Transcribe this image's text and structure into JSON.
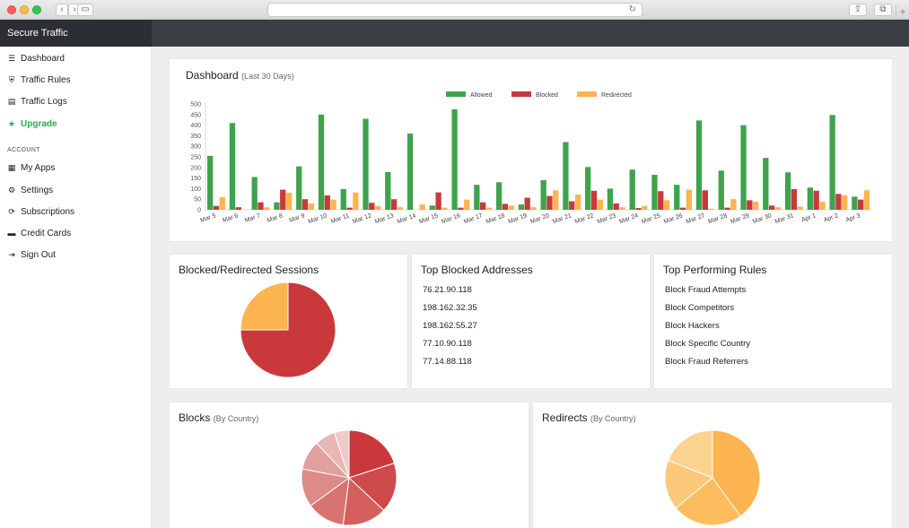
{
  "app": {
    "brand": "Secure Traffic"
  },
  "sidebar": {
    "items": [
      {
        "label": "Dashboard",
        "icon": "menu-icon"
      },
      {
        "label": "Traffic Rules",
        "icon": "shield-icon"
      },
      {
        "label": "Traffic Logs",
        "icon": "logs-icon"
      },
      {
        "label": "Upgrade",
        "icon": "star-icon"
      }
    ],
    "account_heading": "ACCOUNT",
    "account_items": [
      {
        "label": "My Apps",
        "icon": "grid-icon"
      },
      {
        "label": "Settings",
        "icon": "gear-icon"
      },
      {
        "label": "Subscriptions",
        "icon": "refresh-icon"
      },
      {
        "label": "Credit Cards",
        "icon": "credit-card-icon"
      },
      {
        "label": "Sign Out",
        "icon": "sign-out-icon"
      }
    ]
  },
  "dashboard": {
    "title": "Dashboard",
    "subtitle": "(Last 30 Days)",
    "chart_data": {
      "type": "bar",
      "categories": [
        "Mar 5",
        "Mar 6",
        "Mar 7",
        "Mar 8",
        "Mar 9",
        "Mar 10",
        "Mar 11",
        "Mar 12",
        "Mar 13",
        "Mar 14",
        "Mar 15",
        "Mar 16",
        "Mar 17",
        "Mar 18",
        "Mar 19",
        "Mar 20",
        "Mar 21",
        "Mar 22",
        "Mar 23",
        "Mar 24",
        "Mar 25",
        "Mar 26",
        "Mar 27",
        "Mar 28",
        "Mar 29",
        "Mar 30",
        "Mar 31",
        "Apr 1",
        "Apr 2",
        "Apr 3"
      ],
      "series": [
        {
          "name": "Allowed",
          "color": "#3fa34d",
          "values": [
            255,
            410,
            155,
            35,
            205,
            450,
            98,
            430,
            178,
            360,
            20,
            475,
            118,
            130,
            25,
            140,
            320,
            202,
            100,
            190,
            165,
            118,
            422,
            185,
            400,
            245,
            177,
            105,
            448,
            62
          ]
        },
        {
          "name": "Blocked",
          "color": "#c9393b",
          "values": [
            18,
            12,
            35,
            95,
            50,
            68,
            10,
            33,
            50,
            0,
            82,
            10,
            35,
            28,
            57,
            65,
            40,
            90,
            30,
            8,
            88,
            10,
            92,
            10,
            45,
            20,
            98,
            90,
            75,
            48
          ]
        },
        {
          "name": "Redirected",
          "color": "#fbb450",
          "values": [
            60,
            0,
            12,
            80,
            30,
            48,
            82,
            18,
            12,
            25,
            10,
            48,
            10,
            20,
            12,
            92,
            72,
            48,
            12,
            18,
            45,
            95,
            5,
            50,
            38,
            12,
            15,
            38,
            68,
            92
          ]
        }
      ],
      "ylim": [
        0,
        500
      ],
      "yticks": [
        0,
        50,
        100,
        150,
        200,
        250,
        300,
        350,
        400,
        450,
        500
      ],
      "legend": "top"
    }
  },
  "sessions": {
    "title": "Blocked/Redirected Sessions",
    "chart_data": {
      "type": "pie",
      "labels": [
        "Blocked",
        "Redirected"
      ],
      "values": [
        75,
        25
      ],
      "colors": [
        "#c9393b",
        "#fbb450"
      ]
    }
  },
  "blocked_addresses": {
    "title": "Top Blocked Addresses",
    "items": [
      "76.21.90.118",
      "198.162.32.35",
      "198.162.55.27",
      "77.10.90.118",
      "77.14.88.118"
    ]
  },
  "top_rules": {
    "title": "Top Performing Rules",
    "items": [
      "Block Fraud Attempts",
      "Block Competitors",
      "Block Hackers",
      "Block Specific Country",
      "Block Fraud Referrers"
    ]
  },
  "blocks_country": {
    "title": "Blocks",
    "subtitle": "(By Country)",
    "chart_data": {
      "type": "pie",
      "values": [
        20,
        17,
        15,
        13,
        13,
        10,
        7,
        5
      ],
      "colors": [
        "#c9393b",
        "#cf4a4b",
        "#d45f5d",
        "#d77370",
        "#dc8b88",
        "#e0a09d",
        "#e8b7b4",
        "#eecbc8"
      ]
    }
  },
  "redirects_country": {
    "title": "Redirects",
    "subtitle": "(By Country)",
    "chart_data": {
      "type": "pie",
      "values": [
        40,
        24,
        17,
        19
      ],
      "colors": [
        "#fbb450",
        "#fcbd5f",
        "#fcc97a",
        "#fcd28f"
      ]
    }
  }
}
